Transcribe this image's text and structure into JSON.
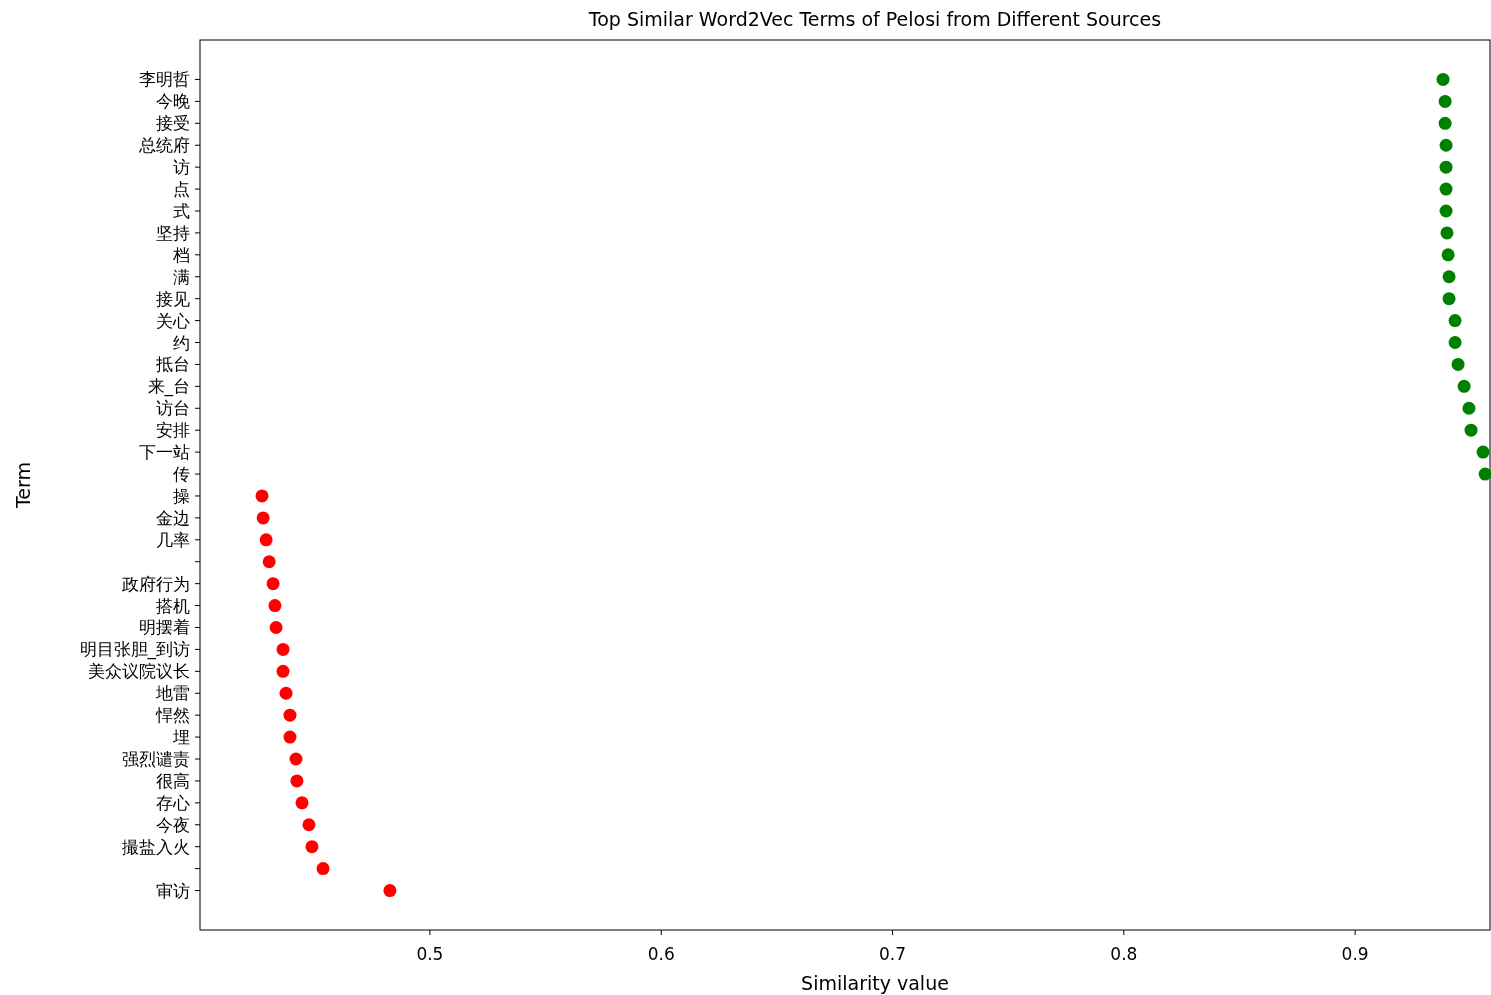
{
  "chart_data": {
    "type": "scatter",
    "title": "Top Similar Word2Vec Terms of Pelosi from Different Sources",
    "xlabel": "Similarity value",
    "ylabel": "Term",
    "orientation": "horizontal",
    "marker": "circle",
    "grid": false,
    "categories": [
      "李明哲",
      "今晚",
      "接受",
      "总统府",
      "访",
      "点",
      "式",
      "坚持",
      "档",
      "满",
      "接见",
      "关心",
      "约",
      "抵台",
      "来_台",
      "访台",
      "安排",
      "下一站",
      "传",
      "操",
      "金边",
      "几率",
      null,
      "政府行为",
      "搭机",
      "明摆着",
      "明目张胆_到访",
      "美众议院议长",
      "地雷",
      "悍然",
      "埋",
      "强烈谴责",
      "很高",
      "存心",
      "今夜",
      "撮盐入火",
      null,
      "审访"
    ],
    "xlim": [
      0.4006,
      0.9583
    ],
    "xticks": [
      0.5,
      0.6,
      0.7,
      0.8,
      0.9
    ],
    "series": [
      {
        "color": "#ff0000",
        "values": [
          null,
          null,
          null,
          null,
          null,
          null,
          null,
          null,
          null,
          null,
          null,
          null,
          null,
          null,
          null,
          null,
          null,
          null,
          null,
          0.4274,
          0.4279,
          0.4292,
          0.4305,
          0.4322,
          0.433,
          0.4335,
          0.4365,
          0.4365,
          0.4378,
          0.4395,
          0.4395,
          0.4421,
          0.4425,
          0.4447,
          0.4477,
          0.449,
          0.4538,
          0.4827
        ]
      },
      {
        "color": "#008000",
        "values": [
          0.938,
          0.9389,
          0.9389,
          0.9393,
          0.9393,
          0.9393,
          0.9393,
          0.9397,
          0.9402,
          0.9406,
          0.9406,
          0.9432,
          0.9432,
          0.9445,
          0.9471,
          0.9492,
          0.9501,
          0.9553,
          0.9562,
          null,
          null,
          null,
          null,
          null,
          null,
          null,
          null,
          null,
          null,
          null,
          null,
          null,
          null,
          null,
          null,
          null,
          null,
          null
        ]
      }
    ]
  }
}
